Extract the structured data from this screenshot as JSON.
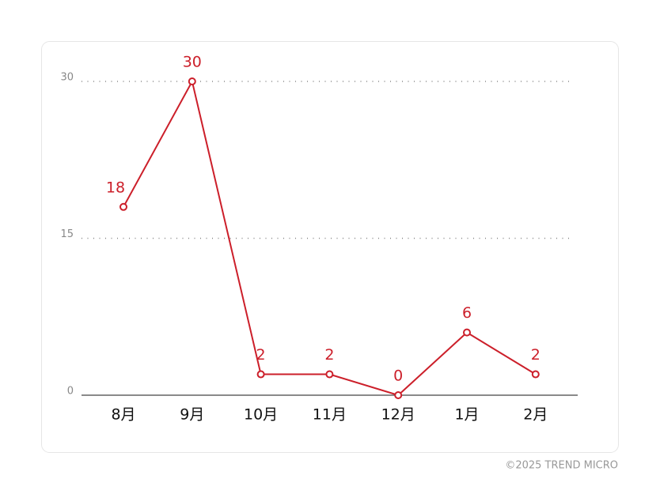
{
  "chart_data": {
    "type": "line",
    "categories": [
      "8月",
      "9月",
      "10月",
      "11月",
      "12月",
      "1月",
      "2月"
    ],
    "series": [
      {
        "color": "#cc1f2a",
        "values": [
          18,
          30,
          2,
          2,
          0,
          6,
          2
        ]
      }
    ],
    "ylim": [
      0,
      30
    ],
    "yticks": [
      0,
      15,
      30
    ],
    "grid": true
  },
  "footer": "©2025 TREND MICRO"
}
